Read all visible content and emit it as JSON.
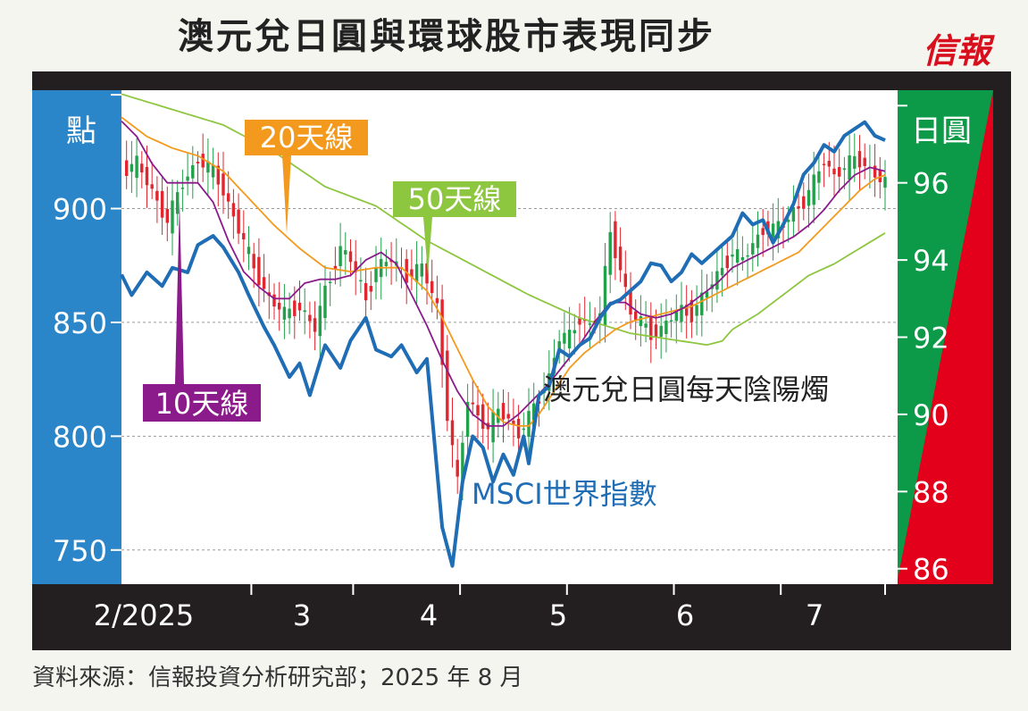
{
  "header": {
    "title": "澳元兌日圓與環球股市表現同步",
    "brand": "信報",
    "source": "資料來源：信報投資分析研究部；2025 年 8 月"
  },
  "colors": {
    "msci": "#1f6db5",
    "ma10": "#8b1a8b",
    "ma20": "#f39a1e",
    "ma50": "#8dc63f",
    "candle_up": "#22a04b",
    "candle_down": "#e0262f",
    "left_band": "#2a86c8",
    "right_green": "#0c9a48",
    "right_red": "#e3001b",
    "frame": "#231f20"
  },
  "chart_data": {
    "type": "line",
    "left_axis": {
      "unit_label": "點",
      "ylim": [
        735,
        952
      ],
      "ticks": [
        750,
        800,
        850,
        900
      ]
    },
    "right_axis": {
      "unit_label": "日圓",
      "ylim": [
        85.6,
        98.4
      ],
      "ticks": [
        86,
        88,
        90,
        92,
        94,
        96
      ]
    },
    "x_axis": {
      "labels": [
        "2/2025",
        "3",
        "4",
        "5",
        "6",
        "7"
      ],
      "n_days": 150
    },
    "annotations": {
      "ma20": "20天線",
      "ma50": "50天線",
      "ma10": "10天線",
      "candles": "澳元兌日圓每天陰陽燭",
      "msci": "MSCI世界指數"
    },
    "series": [
      {
        "name": "MSCI世界指數",
        "axis": "left",
        "keypoints": [
          [
            0,
            871
          ],
          [
            2,
            862
          ],
          [
            5,
            872
          ],
          [
            8,
            866
          ],
          [
            10,
            874
          ],
          [
            13,
            872
          ],
          [
            15,
            884
          ],
          [
            18,
            888
          ],
          [
            20,
            883
          ],
          [
            23,
            872
          ],
          [
            25,
            862
          ],
          [
            28,
            848
          ],
          [
            30,
            840
          ],
          [
            33,
            826
          ],
          [
            35,
            832
          ],
          [
            37,
            818
          ],
          [
            40,
            840
          ],
          [
            43,
            830
          ],
          [
            45,
            842
          ],
          [
            48,
            852
          ],
          [
            50,
            838
          ],
          [
            53,
            835
          ],
          [
            55,
            840
          ],
          [
            58,
            828
          ],
          [
            60,
            834
          ],
          [
            63,
            760
          ],
          [
            65,
            743
          ],
          [
            67,
            780
          ],
          [
            69,
            800
          ],
          [
            71,
            795
          ],
          [
            73,
            780
          ],
          [
            75,
            792
          ],
          [
            77,
            783
          ],
          [
            79,
            800
          ],
          [
            80,
            788
          ],
          [
            82,
            818
          ],
          [
            84,
            822
          ],
          [
            86,
            838
          ],
          [
            88,
            835
          ],
          [
            90,
            840
          ],
          [
            92,
            843
          ],
          [
            94,
            852
          ],
          [
            96,
            858
          ],
          [
            98,
            860
          ],
          [
            100,
            864
          ],
          [
            102,
            868
          ],
          [
            104,
            876
          ],
          [
            106,
            875
          ],
          [
            108,
            868
          ],
          [
            110,
            872
          ],
          [
            112,
            880
          ],
          [
            114,
            876
          ],
          [
            116,
            880
          ],
          [
            118,
            884
          ],
          [
            120,
            888
          ],
          [
            122,
            898
          ],
          [
            124,
            893
          ],
          [
            126,
            895
          ],
          [
            128,
            885
          ],
          [
            130,
            893
          ],
          [
            132,
            902
          ],
          [
            134,
            915
          ],
          [
            136,
            920
          ],
          [
            138,
            928
          ],
          [
            140,
            925
          ],
          [
            142,
            932
          ],
          [
            144,
            935
          ],
          [
            146,
            938
          ],
          [
            148,
            932
          ],
          [
            150,
            930
          ]
        ]
      },
      {
        "name": "10天線",
        "axis": "right",
        "keypoints": [
          [
            0,
            97.6
          ],
          [
            3,
            97.2
          ],
          [
            6,
            96.5
          ],
          [
            9,
            96.0
          ],
          [
            12,
            96.0
          ],
          [
            15,
            96.0
          ],
          [
            18,
            95.5
          ],
          [
            21,
            94.5
          ],
          [
            24,
            93.7
          ],
          [
            27,
            93.3
          ],
          [
            30,
            93.0
          ],
          [
            33,
            93.0
          ],
          [
            36,
            93.4
          ],
          [
            39,
            93.5
          ],
          [
            42,
            93.5
          ],
          [
            45,
            93.6
          ],
          [
            48,
            94.0
          ],
          [
            51,
            94.2
          ],
          [
            54,
            93.9
          ],
          [
            57,
            93.1
          ],
          [
            60,
            92.3
          ],
          [
            63,
            91.4
          ],
          [
            66,
            90.6
          ],
          [
            69,
            90.0
          ],
          [
            72,
            89.7
          ],
          [
            75,
            89.7
          ],
          [
            78,
            90.0
          ],
          [
            81,
            90.4
          ],
          [
            84,
            90.8
          ],
          [
            87,
            91.3
          ],
          [
            90,
            91.8
          ],
          [
            93,
            92.4
          ],
          [
            96,
            92.9
          ],
          [
            99,
            92.9
          ],
          [
            102,
            92.6
          ],
          [
            105,
            92.5
          ],
          [
            108,
            92.6
          ],
          [
            111,
            92.8
          ],
          [
            114,
            93.1
          ],
          [
            117,
            93.4
          ],
          [
            120,
            93.8
          ],
          [
            123,
            94.0
          ],
          [
            126,
            94.2
          ],
          [
            129,
            94.4
          ],
          [
            132,
            94.6
          ],
          [
            135,
            94.9
          ],
          [
            138,
            95.3
          ],
          [
            141,
            95.8
          ],
          [
            144,
            96.2
          ],
          [
            147,
            96.4
          ],
          [
            150,
            96.3
          ]
        ]
      },
      {
        "name": "20天線",
        "axis": "right",
        "keypoints": [
          [
            0,
            97.7
          ],
          [
            5,
            97.2
          ],
          [
            10,
            96.9
          ],
          [
            15,
            96.7
          ],
          [
            20,
            96.3
          ],
          [
            25,
            95.6
          ],
          [
            30,
            94.9
          ],
          [
            35,
            94.3
          ],
          [
            40,
            93.8
          ],
          [
            45,
            93.7
          ],
          [
            50,
            93.8
          ],
          [
            55,
            93.8
          ],
          [
            60,
            93.2
          ],
          [
            63,
            92.5
          ],
          [
            66,
            91.7
          ],
          [
            69,
            90.9
          ],
          [
            72,
            90.2
          ],
          [
            75,
            89.8
          ],
          [
            78,
            89.7
          ],
          [
            80,
            89.7
          ],
          [
            82,
            90.0
          ],
          [
            84,
            90.4
          ],
          [
            86,
            90.8
          ],
          [
            88,
            91.2
          ],
          [
            91,
            91.6
          ],
          [
            94,
            91.9
          ],
          [
            97,
            92.2
          ],
          [
            100,
            92.4
          ],
          [
            103,
            92.5
          ],
          [
            106,
            92.6
          ],
          [
            109,
            92.7
          ],
          [
            112,
            92.8
          ],
          [
            115,
            93.0
          ],
          [
            118,
            93.2
          ],
          [
            121,
            93.4
          ],
          [
            124,
            93.6
          ],
          [
            127,
            93.8
          ],
          [
            130,
            94.0
          ],
          [
            133,
            94.2
          ],
          [
            136,
            94.6
          ],
          [
            139,
            95.0
          ],
          [
            142,
            95.4
          ],
          [
            145,
            95.8
          ],
          [
            148,
            96.1
          ],
          [
            150,
            96.2
          ]
        ]
      },
      {
        "name": "50天線",
        "axis": "right",
        "keypoints": [
          [
            0,
            98.3
          ],
          [
            10,
            97.9
          ],
          [
            20,
            97.5
          ],
          [
            30,
            96.8
          ],
          [
            40,
            95.9
          ],
          [
            50,
            95.4
          ],
          [
            60,
            94.5
          ],
          [
            70,
            93.8
          ],
          [
            80,
            93.1
          ],
          [
            90,
            92.5
          ],
          [
            95,
            92.3
          ],
          [
            100,
            92.1
          ],
          [
            105,
            92.0
          ],
          [
            110,
            91.9
          ],
          [
            115,
            91.8
          ],
          [
            118,
            91.9
          ],
          [
            120,
            92.2
          ],
          [
            125,
            92.6
          ],
          [
            130,
            93.1
          ],
          [
            135,
            93.6
          ],
          [
            140,
            93.9
          ],
          [
            145,
            94.3
          ],
          [
            150,
            94.7
          ]
        ]
      },
      {
        "name": "澳元兌日圓每天陰陽燭",
        "axis": "right",
        "keypoints": [
          [
            0,
            96.3
          ],
          [
            3,
            96.5
          ],
          [
            6,
            95.8
          ],
          [
            9,
            95.0
          ],
          [
            12,
            96.0
          ],
          [
            15,
            96.6
          ],
          [
            18,
            96.3
          ],
          [
            20,
            95.8
          ],
          [
            23,
            94.8
          ],
          [
            26,
            93.8
          ],
          [
            29,
            93.0
          ],
          [
            32,
            92.6
          ],
          [
            35,
            92.8
          ],
          [
            38,
            92.2
          ],
          [
            40,
            93.2
          ],
          [
            43,
            94.3
          ],
          [
            45,
            94.0
          ],
          [
            48,
            93.0
          ],
          [
            50,
            93.8
          ],
          [
            53,
            94.0
          ],
          [
            56,
            93.6
          ],
          [
            59,
            93.8
          ],
          [
            62,
            92.8
          ],
          [
            64,
            90.0
          ],
          [
            66,
            88.2
          ],
          [
            68,
            90.4
          ],
          [
            70,
            90.0
          ],
          [
            72,
            89.6
          ],
          [
            74,
            90.1
          ],
          [
            76,
            89.9
          ],
          [
            78,
            89.5
          ],
          [
            80,
            89.9
          ],
          [
            82,
            90.4
          ],
          [
            84,
            91.0
          ],
          [
            86,
            92.0
          ],
          [
            88,
            92.0
          ],
          [
            90,
            92.5
          ],
          [
            92,
            92.3
          ],
          [
            94,
            92.6
          ],
          [
            96,
            94.7
          ],
          [
            98,
            93.8
          ],
          [
            100,
            92.6
          ],
          [
            102,
            92.4
          ],
          [
            104,
            92.1
          ],
          [
            106,
            92.2
          ],
          [
            108,
            92.5
          ],
          [
            110,
            92.7
          ],
          [
            112,
            92.6
          ],
          [
            114,
            93.0
          ],
          [
            116,
            93.4
          ],
          [
            118,
            93.8
          ],
          [
            120,
            94.2
          ],
          [
            122,
            94.0
          ],
          [
            124,
            94.4
          ],
          [
            126,
            94.8
          ],
          [
            128,
            94.8
          ],
          [
            130,
            94.9
          ],
          [
            132,
            95.3
          ],
          [
            134,
            95.5
          ],
          [
            136,
            96.0
          ],
          [
            138,
            96.6
          ],
          [
            140,
            96.2
          ],
          [
            142,
            96.4
          ],
          [
            144,
            96.6
          ],
          [
            146,
            96.5
          ],
          [
            148,
            96.2
          ],
          [
            150,
            96.0
          ]
        ]
      }
    ],
    "grid": true,
    "legend": "none"
  }
}
